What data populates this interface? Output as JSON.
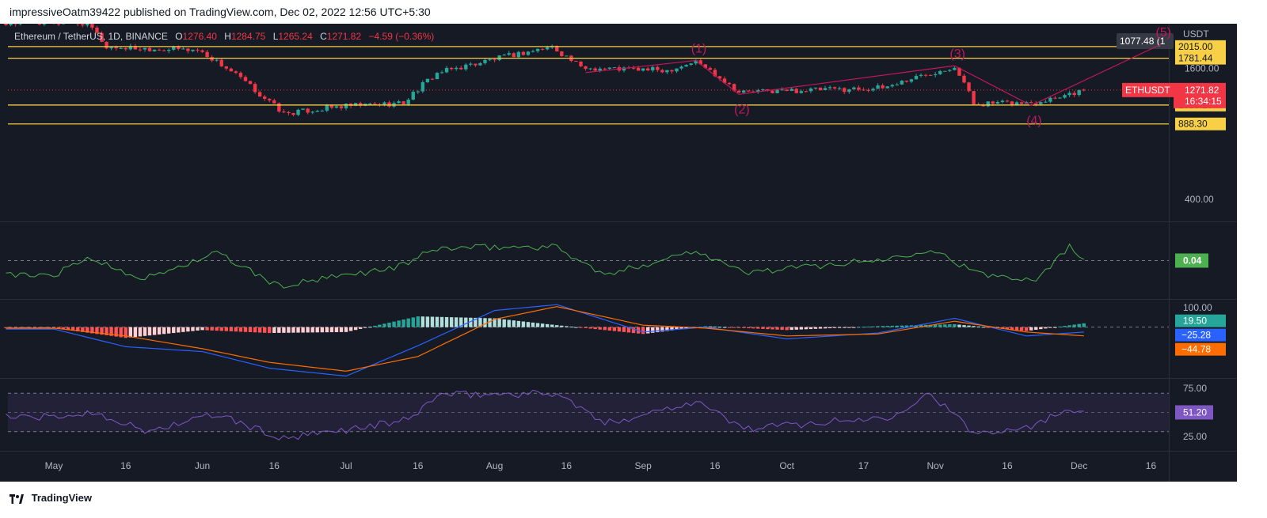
{
  "header": {
    "published_text": "impressiveOatm39422 published on TradingView.com, Dec 02, 2022 12:56 UTC+5:30"
  },
  "legend": {
    "symbol": "Ethereum / TetherUS, 1D, BINANCE",
    "open_label": "O",
    "open": "1276.40",
    "high_label": "H",
    "high": "1284.75",
    "low_label": "L",
    "low": "1265.24",
    "close_label": "C",
    "close": "1271.82",
    "change": "−4.59 (−0.36%)"
  },
  "footer": {
    "brand": "TradingView"
  },
  "colors": {
    "background": "#161a25",
    "up": "#26a69a",
    "down": "#f23645",
    "level": "#f7d046",
    "osc": "#4caf50",
    "macd": "#2962ff",
    "signal": "#ff6d00",
    "rsi": "#7e57c2",
    "wave": "#c2185b"
  },
  "chart_data": [
    {
      "type": "candlestick",
      "panel": "price",
      "currency": "USDT",
      "scale": "log",
      "ylim": [
        330,
        2400
      ],
      "y_ticks": [
        "1600.00",
        "400.00"
      ],
      "x_ticks": [
        "May",
        "16",
        "Jun",
        "16",
        "Jul",
        "16",
        "Aug",
        "16",
        "Sep",
        "16",
        "Oct",
        "17",
        "Nov",
        "16",
        "Dec",
        "16"
      ],
      "horizontal_levels": [
        {
          "value": 2015.0,
          "label": "2015.00"
        },
        {
          "value": 1781.44,
          "label": "1781.44"
        },
        {
          "value": 1085.2,
          "label": "1085.20"
        },
        {
          "value": 888.3,
          "label": "888.30"
        }
      ],
      "price_label": {
        "symbol": "ETHUSDT",
        "value": "1271.82",
        "countdown": "16:34:15"
      },
      "crosshair_label": "1077.48 (1",
      "wave_labels": [
        "(1)",
        "(2)",
        "(3)",
        "(4)",
        "(5)"
      ],
      "wave_points": [
        {
          "label": "",
          "date": "2022-08-20",
          "price": 1530
        },
        {
          "label": "(1)",
          "date": "2022-09-12",
          "price": 1740
        },
        {
          "label": "(2)",
          "date": "2022-09-21",
          "price": 1215
        },
        {
          "label": "(3)",
          "date": "2022-11-05",
          "price": 1645
        },
        {
          "label": "(4)",
          "date": "2022-11-21",
          "price": 1080
        },
        {
          "label": "(5)",
          "date": "2022-12-18",
          "price": 2060
        }
      ],
      "trend_segments": [
        {
          "from": "2022-09-21",
          "to": "2022-11-05"
        },
        {
          "from": "2022-11-21",
          "to": "2022-12-18"
        }
      ],
      "key_closes": [
        {
          "date": "2022-05-08",
          "value": 2580
        },
        {
          "date": "2022-05-12",
          "value": 2000
        },
        {
          "date": "2022-05-31",
          "value": 1945
        },
        {
          "date": "2022-06-13",
          "value": 1210
        },
        {
          "date": "2022-06-18",
          "value": 990
        },
        {
          "date": "2022-06-30",
          "value": 1068
        },
        {
          "date": "2022-07-13",
          "value": 1110
        },
        {
          "date": "2022-07-20",
          "value": 1520
        },
        {
          "date": "2022-08-13",
          "value": 2010
        },
        {
          "date": "2022-08-19",
          "value": 1610
        },
        {
          "date": "2022-09-06",
          "value": 1570
        },
        {
          "date": "2022-09-12",
          "value": 1720
        },
        {
          "date": "2022-09-21",
          "value": 1245
        },
        {
          "date": "2022-10-21",
          "value": 1300
        },
        {
          "date": "2022-11-05",
          "value": 1640
        },
        {
          "date": "2022-11-09",
          "value": 1100
        },
        {
          "date": "2022-11-21",
          "value": 1110
        },
        {
          "date": "2022-12-02",
          "value": 1271.82
        }
      ]
    },
    {
      "type": "line",
      "panel": "oscillator",
      "ylim": [
        -1,
        1
      ],
      "zero_line": true,
      "last_value": "0.04",
      "key_points": [
        {
          "date": "2022-05-01",
          "value": -0.5
        },
        {
          "date": "2022-05-08",
          "value": 0.1
        },
        {
          "date": "2022-05-20",
          "value": -0.6
        },
        {
          "date": "2022-06-04",
          "value": 0.25
        },
        {
          "date": "2022-06-17",
          "value": -0.85
        },
        {
          "date": "2022-07-12",
          "value": -0.2
        },
        {
          "date": "2022-07-20",
          "value": 0.4
        },
        {
          "date": "2022-08-06",
          "value": 0.45
        },
        {
          "date": "2022-08-14",
          "value": 0.45
        },
        {
          "date": "2022-08-24",
          "value": -0.5
        },
        {
          "date": "2022-09-12",
          "value": 0.35
        },
        {
          "date": "2022-09-22",
          "value": -0.4
        },
        {
          "date": "2022-10-22",
          "value": 0.05
        },
        {
          "date": "2022-10-31",
          "value": 0.4
        },
        {
          "date": "2022-11-10",
          "value": -0.45
        },
        {
          "date": "2022-11-22",
          "value": -0.6
        },
        {
          "date": "2022-11-29",
          "value": 0.45
        },
        {
          "date": "2022-12-02",
          "value": 0.04
        }
      ]
    },
    {
      "type": "macd",
      "panel": "macd",
      "ylim": [
        -260,
        140
      ],
      "y_ticks": [
        "100.00"
      ],
      "histogram_last": "19.50",
      "macd_last": "−25.28",
      "signal_last": "−44.78",
      "key_points": [
        {
          "date": "2022-05-01",
          "macd": -10,
          "signal": -5
        },
        {
          "date": "2022-05-16",
          "macd": -100,
          "signal": -45
        },
        {
          "date": "2022-06-01",
          "macd": -125,
          "signal": -110
        },
        {
          "date": "2022-06-15",
          "macd": -210,
          "signal": -180
        },
        {
          "date": "2022-07-01",
          "macd": -250,
          "signal": -225
        },
        {
          "date": "2022-07-16",
          "macd": -95,
          "signal": -150
        },
        {
          "date": "2022-08-01",
          "macd": 85,
          "signal": 40
        },
        {
          "date": "2022-08-14",
          "macd": 115,
          "signal": 105
        },
        {
          "date": "2022-09-01",
          "macd": -25,
          "signal": 10
        },
        {
          "date": "2022-09-14",
          "macd": 0,
          "signal": -5
        },
        {
          "date": "2022-10-01",
          "macd": -60,
          "signal": -45
        },
        {
          "date": "2022-10-20",
          "macd": -30,
          "signal": -35
        },
        {
          "date": "2022-11-05",
          "macd": 45,
          "signal": 30
        },
        {
          "date": "2022-11-20",
          "macd": -45,
          "signal": -25
        },
        {
          "date": "2022-12-02",
          "macd": -25.28,
          "signal": -44.78
        }
      ]
    },
    {
      "type": "line",
      "panel": "rsi",
      "ylim": [
        10,
        85
      ],
      "y_ticks": [
        "75.00",
        "25.00"
      ],
      "band": [
        70,
        30
      ],
      "mid": 50,
      "last_value": "51.20",
      "key_points": [
        {
          "date": "2022-05-01",
          "value": 45
        },
        {
          "date": "2022-05-10",
          "value": 50
        },
        {
          "date": "2022-05-20",
          "value": 30
        },
        {
          "date": "2022-06-04",
          "value": 48
        },
        {
          "date": "2022-06-18",
          "value": 22
        },
        {
          "date": "2022-07-14",
          "value": 42
        },
        {
          "date": "2022-07-20",
          "value": 68
        },
        {
          "date": "2022-08-14",
          "value": 70
        },
        {
          "date": "2022-08-24",
          "value": 38
        },
        {
          "date": "2022-09-12",
          "value": 62
        },
        {
          "date": "2022-09-22",
          "value": 33
        },
        {
          "date": "2022-10-22",
          "value": 45
        },
        {
          "date": "2022-10-31",
          "value": 70
        },
        {
          "date": "2022-11-09",
          "value": 28
        },
        {
          "date": "2022-11-22",
          "value": 37
        },
        {
          "date": "2022-11-29",
          "value": 55
        },
        {
          "date": "2022-12-02",
          "value": 51.2
        }
      ]
    }
  ]
}
